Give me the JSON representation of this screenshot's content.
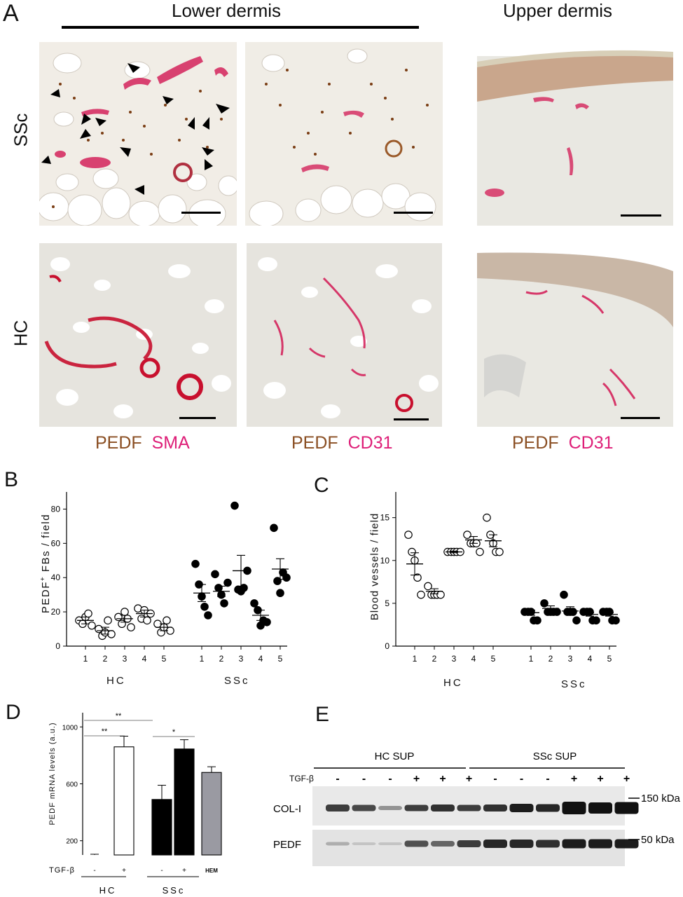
{
  "panelA": {
    "letter": "A",
    "header_lower": "Lower dermis",
    "header_upper": "Upper dermis",
    "row_ssc": "SSc",
    "row_hc": "HC",
    "stains": [
      {
        "brown": "PEDF",
        "pink": "SMA"
      },
      {
        "brown": "PEDF",
        "pink": "CD31"
      },
      {
        "brown": "PEDF",
        "pink": "CD31"
      }
    ]
  },
  "panelB": {
    "letter": "B",
    "ylabel_pre": "PEDF",
    "ylabel_sup": "+",
    "ylabel_post": " FBs / field",
    "group_labels": [
      "HC",
      "SSc"
    ]
  },
  "panelC": {
    "letter": "C",
    "ylabel": "Blood vessels / field",
    "group_labels": [
      "HC",
      "SSc"
    ]
  },
  "panelD": {
    "letter": "D",
    "ylabel": "PEDF mRNA levels (a.u.)",
    "treat_label": "TGF-β",
    "treat_signs": [
      "-",
      "+",
      "-",
      "+"
    ],
    "hem_label": "HEM",
    "group_labels": [
      "HC",
      "SSc"
    ],
    "sig": [
      "**",
      "**",
      "*"
    ]
  },
  "panelE": {
    "letter": "E",
    "group_labels": [
      "HC SUP",
      "SSc SUP"
    ],
    "treat_label": "TGF-β",
    "signs": [
      "-",
      "-",
      "-",
      "+",
      "+",
      "+",
      "-",
      "-",
      "-",
      "+",
      "+",
      "+"
    ],
    "bands": [
      "COL-I",
      "PEDF"
    ],
    "mw": [
      "150 kDa",
      "50 kDa"
    ]
  },
  "chart_data": [
    {
      "type": "scatter",
      "panel": "B",
      "ylabel": "PEDF+ FBs / field",
      "ylim": [
        0,
        90
      ],
      "yticks": [
        0,
        20,
        40,
        60,
        80
      ],
      "categories": [
        "1",
        "2",
        "3",
        "4",
        "5",
        "1",
        "2",
        "3",
        "4",
        "5"
      ],
      "group_labels": [
        "HC",
        "SSc"
      ],
      "series": [
        {
          "group": "HC",
          "filled": false,
          "points": [
            [
              15,
              13,
              17,
              19,
              12
            ],
            [
              10,
              6,
              8,
              15,
              7
            ],
            [
              17,
              13,
              20,
              16,
              11
            ],
            [
              22,
              16,
              21,
              15,
              19
            ],
            [
              13,
              8,
              11,
              15,
              9
            ]
          ],
          "means": [
            15,
            9,
            16,
            19,
            11
          ],
          "sem": [
            2,
            2,
            2,
            2,
            2
          ]
        },
        {
          "group": "SSc",
          "filled": true,
          "points": [
            [
              48,
              36,
              29,
              23,
              18
            ],
            [
              42,
              34,
              30,
              25,
              37
            ],
            [
              82,
              33,
              32,
              34,
              44
            ],
            [
              25,
              21,
              12,
              15,
              14
            ],
            [
              69,
              38,
              31,
              43,
              40
            ]
          ],
          "means": [
            31,
            32,
            44,
            18,
            45
          ],
          "sem": [
            5,
            3,
            9,
            3,
            6
          ]
        }
      ]
    },
    {
      "type": "scatter",
      "panel": "C",
      "ylabel": "Blood vessels / field",
      "ylim": [
        0,
        18
      ],
      "yticks": [
        0,
        5,
        10,
        15
      ],
      "categories": [
        "1",
        "2",
        "3",
        "4",
        "5",
        "1",
        "2",
        "3",
        "4",
        "5"
      ],
      "group_labels": [
        "HC",
        "SSc"
      ],
      "series": [
        {
          "group": "HC",
          "filled": false,
          "points": [
            [
              13,
              11,
              10,
              8,
              6
            ],
            [
              7,
              6,
              6,
              6,
              6
            ],
            [
              11,
              11,
              11,
              11,
              11
            ],
            [
              13,
              12,
              12,
              12,
              11
            ],
            [
              15,
              13,
              12,
              11,
              11
            ]
          ],
          "means": [
            9.6,
            6.4,
            11,
            12.4,
            12.3
          ],
          "sem": [
            1.3,
            0.3,
            0.1,
            0.4,
            0.7
          ]
        },
        {
          "group": "SSc",
          "filled": true,
          "points": [
            [
              4,
              4,
              4,
              3,
              3
            ],
            [
              5,
              4,
              4,
              4,
              4
            ],
            [
              6,
              4,
              4,
              4,
              3
            ],
            [
              4,
              4,
              4,
              3,
              3
            ],
            [
              4,
              4,
              4,
              3,
              3
            ]
          ],
          "means": [
            3.9,
            4.4,
            4.1,
            3.7,
            3.7
          ],
          "sem": [
            0.3,
            0.3,
            0.5,
            0.2,
            0.2
          ]
        }
      ]
    },
    {
      "type": "bar",
      "panel": "D",
      "ylabel": "PEDF mRNA levels (a.u.)",
      "ylim": [
        100,
        1100
      ],
      "yticks": [
        200,
        600,
        1000
      ],
      "categories": [
        "HC -",
        "HC +",
        "SSc -",
        "SSc +",
        "HEM"
      ],
      "values": [
        100,
        860,
        490,
        845,
        680
      ],
      "errors": [
        5,
        75,
        100,
        65,
        40
      ],
      "colors": [
        "#ffffff",
        "#ffffff",
        "#000000",
        "#000000",
        "#9a9aa2"
      ]
    }
  ]
}
